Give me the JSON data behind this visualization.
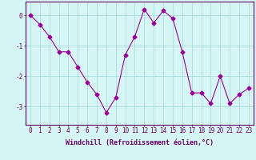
{
  "x": [
    0,
    1,
    2,
    3,
    4,
    5,
    6,
    7,
    8,
    9,
    10,
    11,
    12,
    13,
    14,
    15,
    16,
    17,
    18,
    19,
    20,
    21,
    22,
    23
  ],
  "y": [
    0.0,
    -0.3,
    -0.7,
    -1.2,
    -1.2,
    -1.7,
    -2.2,
    -2.6,
    -3.2,
    -2.7,
    -1.3,
    -0.7,
    0.2,
    -0.25,
    0.15,
    -0.1,
    -1.2,
    -2.55,
    -2.55,
    -2.9,
    -2.0,
    -2.9,
    -2.6,
    -2.4
  ],
  "line_color": "#990099",
  "marker": "D",
  "marker_size": 2.5,
  "bg_color": "#d6f5f5",
  "grid_color": "#aadddd",
  "axis_color": "#660066",
  "xlabel": "Windchill (Refroidissement éolien,°C)",
  "xlabel_fontsize": 6.0,
  "tick_fontsize": 5.5,
  "yticks": [
    0,
    -1,
    -2,
    -3
  ],
  "ylim": [
    -3.6,
    0.45
  ],
  "xlim": [
    -0.5,
    23.5
  ]
}
